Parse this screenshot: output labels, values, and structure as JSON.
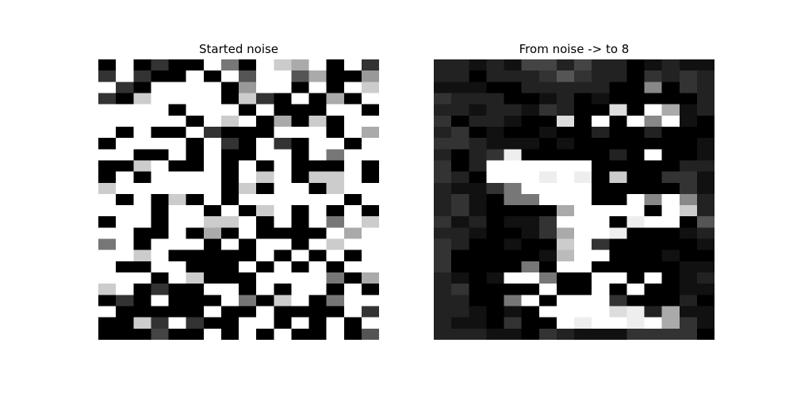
{
  "figure": {
    "panels": [
      {
        "title": "Started noise",
        "colormap": "gray",
        "pixels": [
          "0F0300F70FCAF0F3",
          "3F300F0F5FF5A009",
          "F30FFFF09FF0F0FC",
          "30CFFFF0C30F0A0F",
          "FFFF0FFF0F000FF0",
          "FFFFF0FCF0A0C0FF",
          "F0F00F3000FFF0FA",
          "0FFFF0F30F30FF0F",
          "FF00F0F00FF0F7FF",
          "00CF00F0F0F000F0",
          "0F0FFFF0FCF0CCF0",
          "CFFFFFF0C0FF0CFF",
          "F0F0C0F0FFFFFF0F",
          "FFF0FF0F0CF0F0F0",
          "0FF0FFCCF0F0F7FC",
          "FF00F0A0F0000FAF",
          "7F0FFF0F0FF0FCFF",
          "FFCF00000F0F0F0F",
          "F00FF000F0F0F0FF",
          "FFF0FC000FFFF70A",
          "CF0300FF0F0FF0F0",
          "030F000F70CF07FF",
          "F00000F00F0000F3",
          "00C3F300FF0F0F0F",
          "000400F0F0F00F05"
        ]
      },
      {
        "title": "From noise -> to 8",
        "colormap": "gray",
        "pixels": [
          "2212144242201211",
          "2202223532203232",
          "1110022222008032",
          "3222001201000002",
          "2212213200D0FA12",
          "3022100D0F0F8F10",
          "2301001002002000",
          "3321110100000001",
          "2023E0000020F001",
          "302FFFFFF0000022",
          "320FFFEFE0C00331",
          "21137FFFF0000031",
          "231077FFF00F8F82",
          "2310000AFFFF0FC2",
          "3120113FFF0EFF05",
          "2210013AFFE00012",
          "3200100CF3000001",
          "3000001BFF000100",
          "3000070FF0000011",
          "2101FF700FF0F012",
          "230000F00F0F0011",
          "22007F0FFF300020",
          "221010FFFFDE2A11",
          "2110300FEFFEFA31",
          "2221103211133330"
        ]
      }
    ]
  }
}
